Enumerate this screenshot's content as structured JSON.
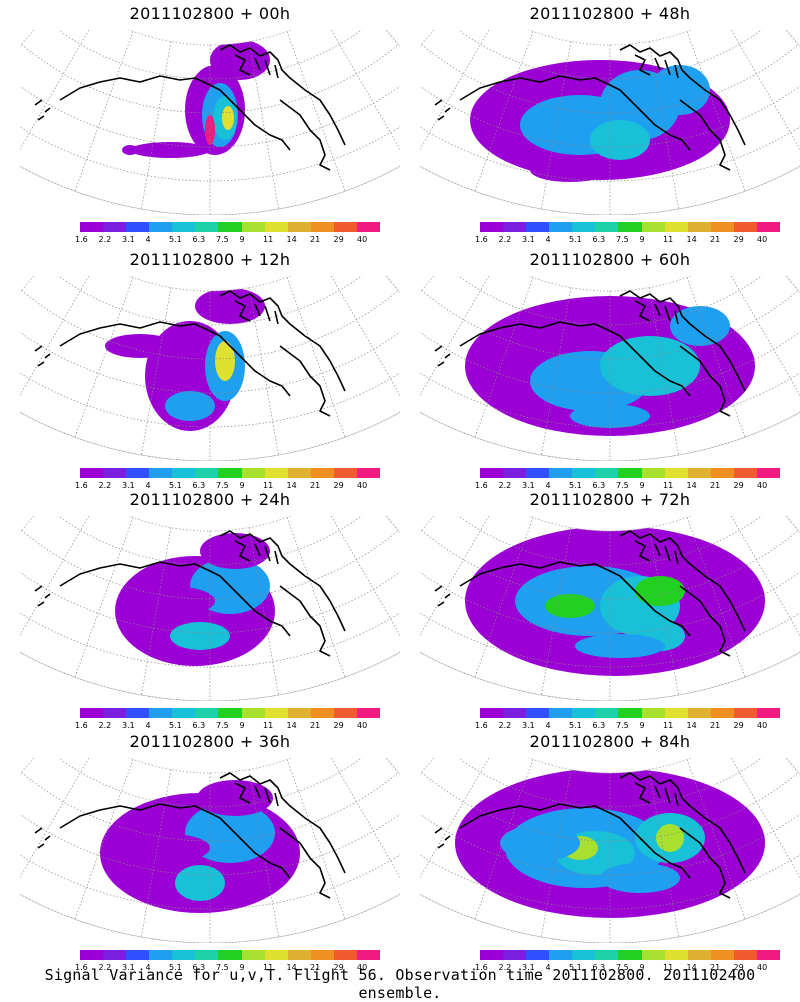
{
  "panels": [
    {
      "title": "2011102800 + 00h",
      "lead": "00h"
    },
    {
      "title": "2011102800 + 48h",
      "lead": "48h"
    },
    {
      "title": "2011102800 + 12h",
      "lead": "12h"
    },
    {
      "title": "2011102800 + 60h",
      "lead": "60h"
    },
    {
      "title": "2011102800 + 24h",
      "lead": "24h"
    },
    {
      "title": "2011102800 + 72h",
      "lead": "72h"
    },
    {
      "title": "2011102800 + 36h",
      "lead": "36h"
    },
    {
      "title": "2011102800 + 84h",
      "lead": "84h"
    }
  ],
  "colorbar": {
    "labels": [
      "1.6",
      "2.2",
      "3.1",
      "4",
      "5.1",
      "6.3",
      "7.5",
      "9",
      "11",
      "14",
      "21",
      "29",
      "40"
    ],
    "colors": [
      "#9b00d4",
      "#7a1fe0",
      "#3050ff",
      "#1f9ff0",
      "#18c0d8",
      "#1dd0a8",
      "#22d020",
      "#a8e030",
      "#e0e030",
      "#e0b030",
      "#f09020",
      "#f05a30",
      "#f01a80"
    ]
  },
  "footer": "Signal Variance for u,v,T. Flight 56. Observation time 2011102800. 2011102400 ensemble."
}
